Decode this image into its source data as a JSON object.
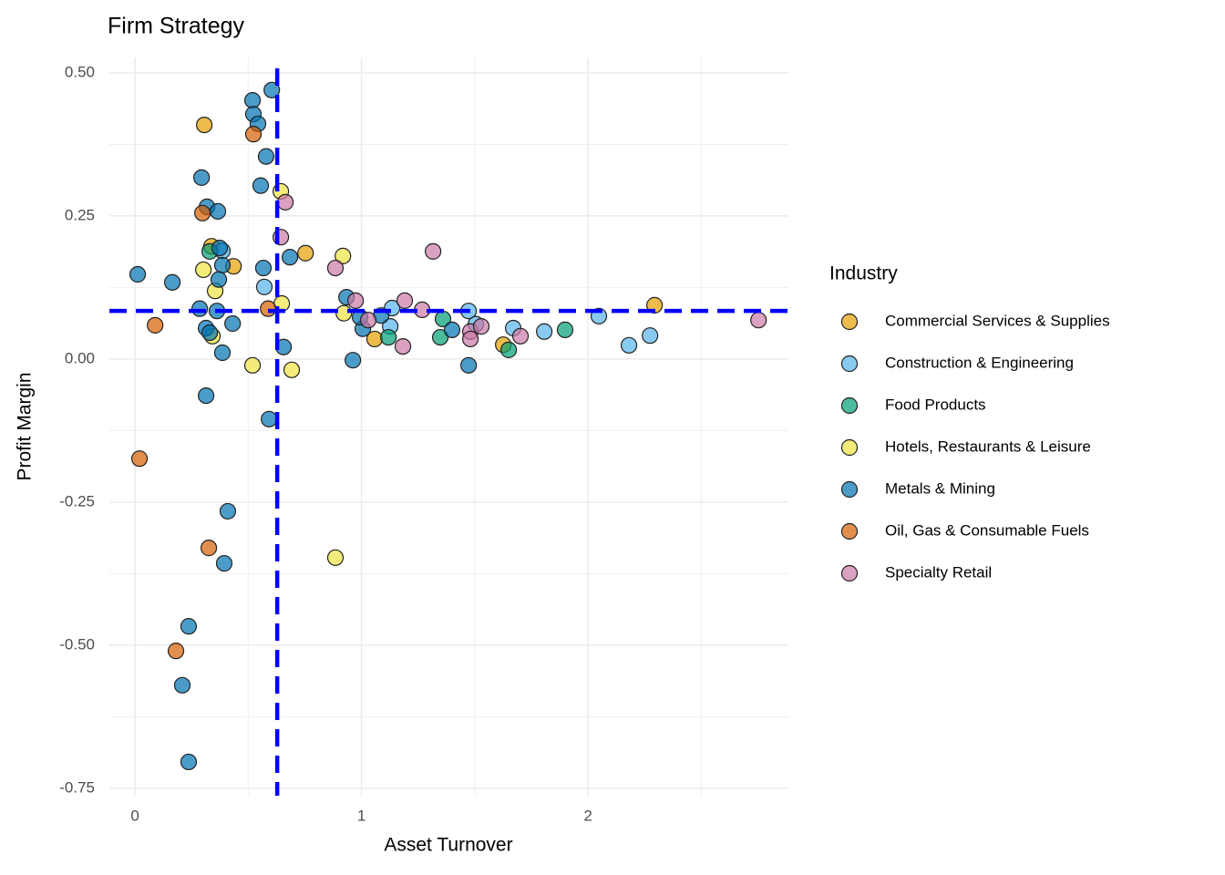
{
  "chart_data": {
    "type": "scatter",
    "title": "Firm Strategy",
    "x_label": "Asset Turnover",
    "y_label": "Profit Margin",
    "legend_title": "Industry",
    "xlim": [
      -0.113,
      2.885
    ],
    "ylim": [
      -0.763,
      0.527
    ],
    "xticks": [
      0,
      1,
      2
    ],
    "yticks": [
      {
        "value": 0.5,
        "label": "0.50"
      },
      {
        "value": 0.25,
        "label": "0.25"
      },
      {
        "value": 0,
        "label": "0.00"
      },
      {
        "value": -0.25,
        "label": "-0.25"
      },
      {
        "value": -0.5,
        "label": "-0.50"
      },
      {
        "value": -0.75,
        "label": "-0.75"
      }
    ],
    "grid": true,
    "legend_position": "right",
    "reference_lines": {
      "x": 0.628,
      "y": 0.084,
      "color": "#0000ff"
    },
    "series": [
      {
        "name": "Commercial Services & Supplies",
        "color": "#E69F00",
        "x": [
          0.306,
          0.338,
          0.435,
          0.753,
          1.058,
          1.626,
          2.294
        ],
        "y": [
          0.409,
          0.197,
          0.162,
          0.185,
          0.035,
          0.025,
          0.094
        ]
      },
      {
        "name": "Construction & Engineering",
        "color": "#56B4E9",
        "x": [
          0.386,
          0.571,
          1.135,
          1.127,
          1.473,
          1.505,
          1.67,
          1.807,
          2.048,
          2.181,
          2.274
        ],
        "y": [
          0.189,
          0.126,
          0.089,
          0.057,
          0.084,
          0.061,
          0.054,
          0.048,
          0.075,
          0.024,
          0.041
        ]
      },
      {
        "name": "Food Products",
        "color": "#009E73",
        "x": [
          0.33,
          1.36,
          1.348,
          1.119,
          1.65,
          1.899
        ],
        "y": [
          0.188,
          0.07,
          0.038,
          0.038,
          0.016,
          0.051
        ]
      },
      {
        "name": "Hotels, Restaurants & Leisure",
        "color": "#F0E442",
        "x": [
          0.302,
          0.354,
          0.342,
          0.644,
          0.648,
          0.519,
          0.692,
          0.918,
          0.922,
          0.885
        ],
        "y": [
          0.156,
          0.119,
          0.04,
          0.293,
          0.097,
          -0.011,
          -0.019,
          0.18,
          0.08,
          -0.347
        ]
      },
      {
        "name": "Metals & Mining",
        "color": "#0072B2",
        "x": [
          0.012,
          0.165,
          0.294,
          0.318,
          0.366,
          0.374,
          0.386,
          0.37,
          0.362,
          0.286,
          0.314,
          0.33,
          0.386,
          0.431,
          0.314,
          0.41,
          0.394,
          0.237,
          0.209,
          0.237,
          0.519,
          0.523,
          0.543,
          0.604,
          0.579,
          0.555,
          0.567,
          0.684,
          0.656,
          0.592,
          0.934,
          1.006,
          0.994,
          0.962,
          1.087,
          1.4,
          1.473
        ],
        "y": [
          0.148,
          0.134,
          0.317,
          0.266,
          0.258,
          0.194,
          0.164,
          0.139,
          0.084,
          0.088,
          0.054,
          0.046,
          0.011,
          0.062,
          -0.064,
          -0.266,
          -0.357,
          -0.467,
          -0.57,
          -0.704,
          0.452,
          0.428,
          0.411,
          0.47,
          0.354,
          0.303,
          0.159,
          0.178,
          0.021,
          -0.105,
          0.108,
          0.053,
          0.073,
          -0.002,
          0.076,
          0.051,
          -0.011
        ]
      },
      {
        "name": "Oil, Gas & Consumable Fuels",
        "color": "#D55E00",
        "x": [
          0.298,
          0.523,
          0.588,
          0.089,
          0.02,
          0.326,
          0.181
        ],
        "y": [
          0.255,
          0.393,
          0.088,
          0.059,
          -0.174,
          -0.33,
          -0.51
        ]
      },
      {
        "name": "Specialty Retail",
        "color": "#CC79A7",
        "x": [
          0.664,
          0.644,
          0.885,
          0.974,
          1.03,
          1.191,
          1.183,
          1.268,
          1.316,
          1.481,
          1.481,
          1.529,
          1.702,
          2.753
        ],
        "y": [
          0.274,
          0.213,
          0.159,
          0.102,
          0.068,
          0.102,
          0.022,
          0.086,
          0.188,
          0.048,
          0.035,
          0.057,
          0.04,
          0.068
        ]
      }
    ]
  }
}
